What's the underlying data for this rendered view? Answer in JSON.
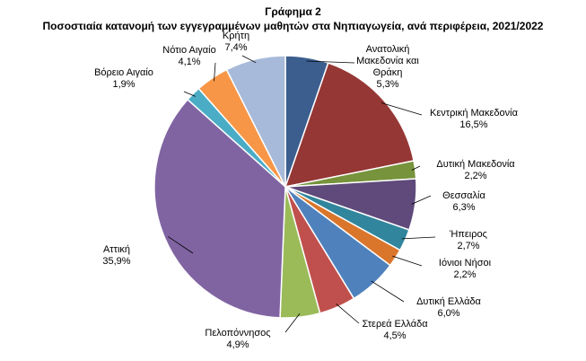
{
  "chart_data": {
    "type": "pie",
    "title": "Γράφημα 2",
    "subtitle": "Ποσοστιαία κατανομή των εγγεγραμμένων μαθητών στα Νηπιαγωγεία, ανά περιφέρεια, 2021/2022",
    "categories": [
      "Ανατολική Μακεδονία και Θράκη",
      "Κεντρική Μακεδονία",
      "Δυτική Μακεδονία",
      "Θεσσαλία",
      "Ήπειρος",
      "Ιόνιοι Νήσοι",
      "Δυτική Ελλάδα",
      "Στερεά Ελλάδα",
      "Πελοπόννησος",
      "Αττική",
      "Βόρειο Αιγαίο",
      "Νότιο Αιγαίο",
      "Κρήτη"
    ],
    "values": [
      5.3,
      16.5,
      2.2,
      6.3,
      2.7,
      2.2,
      6.0,
      4.5,
      4.9,
      35.9,
      1.9,
      4.1,
      7.4
    ],
    "value_labels": [
      "5,3%",
      "16,5%",
      "2,2%",
      "6,3%",
      "2,7%",
      "2,2%",
      "6,0%",
      "4,5%",
      "4,9%",
      "35,9%",
      "1,9%",
      "4,1%",
      "7,4%"
    ],
    "colors": [
      "#3C5E8F",
      "#953735",
      "#77933C",
      "#604A7B",
      "#31859C",
      "#D9762B",
      "#4F81BD",
      "#C0504D",
      "#9BBB59",
      "#8064A2",
      "#4BACC6",
      "#F79646",
      "#A8BADA"
    ]
  }
}
